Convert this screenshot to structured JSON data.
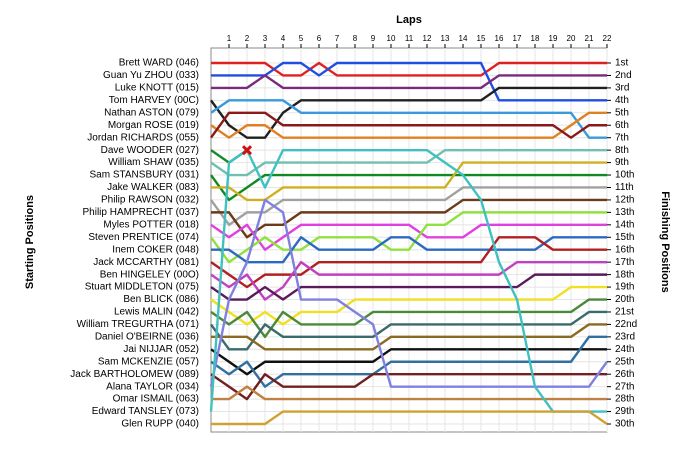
{
  "chart_data": {
    "type": "line",
    "title": "Laps",
    "y_label_left": "Starting Positions",
    "y_label_right": "Finishing Positions",
    "x": [
      0,
      1,
      2,
      3,
      4,
      5,
      6,
      7,
      8,
      9,
      10,
      11,
      12,
      13,
      14,
      15,
      16,
      17,
      18,
      19,
      20,
      21,
      22
    ],
    "xlim": [
      0,
      22
    ],
    "xticks": [
      1,
      2,
      3,
      4,
      5,
      6,
      7,
      8,
      9,
      10,
      11,
      12,
      13,
      14,
      15,
      16,
      17,
      18,
      19,
      20,
      21,
      22
    ],
    "ylim": [
      1,
      30
    ],
    "y_inverted": true,
    "grid": true,
    "yticks": [
      {
        "value": 1,
        "label": "1st"
      },
      {
        "value": 2,
        "label": "2nd"
      },
      {
        "value": 3,
        "label": "3rd"
      },
      {
        "value": 4,
        "label": "4th"
      },
      {
        "value": 5,
        "label": "5th"
      },
      {
        "value": 6,
        "label": "6th"
      },
      {
        "value": 7,
        "label": "7th"
      },
      {
        "value": 8,
        "label": "8th"
      },
      {
        "value": 9,
        "label": "9th"
      },
      {
        "value": 10,
        "label": "10th"
      },
      {
        "value": 11,
        "label": "11th"
      },
      {
        "value": 12,
        "label": "12th"
      },
      {
        "value": 13,
        "label": "13th"
      },
      {
        "value": 14,
        "label": "14th"
      },
      {
        "value": 15,
        "label": "15th"
      },
      {
        "value": 16,
        "label": "16th"
      },
      {
        "value": 17,
        "label": "17th"
      },
      {
        "value": 18,
        "label": "18th"
      },
      {
        "value": 19,
        "label": "19th"
      },
      {
        "value": 20,
        "label": "20th"
      },
      {
        "value": 21,
        "label": "21st"
      },
      {
        "value": 22,
        "label": "22nd"
      },
      {
        "value": 23,
        "label": "23rd"
      },
      {
        "value": 24,
        "label": "24th"
      },
      {
        "value": 25,
        "label": "25th"
      },
      {
        "value": 26,
        "label": "26th"
      },
      {
        "value": 27,
        "label": "27th"
      },
      {
        "value": 28,
        "label": "28th"
      },
      {
        "value": 29,
        "label": "29th"
      },
      {
        "value": 30,
        "label": "30th"
      }
    ],
    "crash_marks": [
      {
        "lap": 2,
        "position": 8
      }
    ],
    "series": [
      {
        "name": "Brett WARD (046)",
        "color": "#e02020",
        "values": [
          1,
          1,
          1,
          1,
          2,
          2,
          1,
          2,
          2,
          2,
          2,
          2,
          2,
          2,
          2,
          2,
          1,
          1,
          1,
          1,
          1,
          1,
          1
        ]
      },
      {
        "name": "Guan Yu ZHOU (033)",
        "color": "#1f4fe0",
        "values": [
          2,
          2,
          2,
          2,
          1,
          1,
          2,
          1,
          1,
          1,
          1,
          1,
          1,
          1,
          1,
          1,
          4,
          4,
          4,
          4,
          4,
          4,
          4
        ]
      },
      {
        "name": "Luke KNOTT (015)",
        "color": "#7a2a7a",
        "values": [
          3,
          3,
          3,
          2,
          3,
          3,
          3,
          3,
          3,
          3,
          3,
          3,
          3,
          3,
          3,
          3,
          2,
          2,
          2,
          2,
          2,
          2,
          2
        ]
      },
      {
        "name": "Tom HARVEY (00C)",
        "color": "#202020",
        "values": [
          4,
          6,
          7,
          7,
          5,
          4,
          4,
          4,
          4,
          4,
          4,
          4,
          4,
          4,
          4,
          4,
          3,
          3,
          3,
          3,
          3,
          3,
          3
        ]
      },
      {
        "name": "Nathan ASTON (079)",
        "color": "#3a9ad9",
        "values": [
          5,
          4,
          4,
          4,
          4,
          5,
          5,
          5,
          5,
          5,
          5,
          5,
          5,
          5,
          5,
          5,
          5,
          5,
          5,
          5,
          5,
          7,
          7
        ]
      },
      {
        "name": "Morgan ROSE (019)",
        "color": "#e08020",
        "values": [
          6,
          7,
          6,
          6,
          7,
          7,
          7,
          7,
          7,
          7,
          7,
          7,
          7,
          7,
          7,
          7,
          7,
          7,
          7,
          7,
          6,
          5,
          5
        ]
      },
      {
        "name": "Jordan RICHARDS (055)",
        "color": "#8a1a1a",
        "values": [
          7,
          5,
          5,
          5,
          6,
          6,
          6,
          6,
          6,
          6,
          6,
          6,
          6,
          6,
          6,
          6,
          6,
          6,
          6,
          6,
          7,
          6,
          6
        ]
      },
      {
        "name": "Dave WOODER (027)",
        "color": "#1a8a2a",
        "values": [
          8,
          9,
          8,
          null,
          null,
          null,
          null,
          null,
          null,
          null,
          null,
          null,
          null,
          null,
          null,
          null,
          null,
          null,
          null,
          null,
          null,
          null,
          null
        ]
      },
      {
        "name": "William SHAW (035)",
        "color": "#70c0b0",
        "values": [
          9,
          10,
          10,
          9,
          9,
          9,
          9,
          9,
          9,
          9,
          9,
          9,
          9,
          8,
          8,
          8,
          8,
          8,
          8,
          8,
          8,
          8,
          8
        ]
      },
      {
        "name": "Sam STANSBURY (031)",
        "color": "#108a20",
        "values": [
          10,
          12,
          11,
          10,
          10,
          10,
          10,
          10,
          10,
          10,
          10,
          10,
          10,
          10,
          10,
          10,
          10,
          10,
          10,
          10,
          10,
          10,
          10
        ]
      },
      {
        "name": "Jake WALKER (083)",
        "color": "#d0b020",
        "values": [
          11,
          11,
          12,
          12,
          11,
          11,
          11,
          11,
          11,
          11,
          11,
          11,
          11,
          11,
          9,
          9,
          9,
          9,
          9,
          9,
          9,
          9,
          9
        ]
      },
      {
        "name": "Philip RAWSON (032)",
        "color": "#a0a0a0",
        "values": [
          12,
          14,
          13,
          13,
          12,
          12,
          12,
          12,
          12,
          12,
          12,
          12,
          12,
          12,
          11,
          11,
          11,
          11,
          11,
          11,
          11,
          11,
          11
        ]
      },
      {
        "name": "Philip HAMPRECHT (037)",
        "color": "#6a3a1a",
        "values": [
          13,
          13,
          15,
          14,
          14,
          13,
          13,
          13,
          13,
          13,
          13,
          13,
          13,
          13,
          12,
          12,
          12,
          12,
          12,
          12,
          12,
          12,
          12
        ]
      },
      {
        "name": "Myles POTTER (018)",
        "color": "#e040e0",
        "values": [
          14,
          15,
          14,
          16,
          15,
          14,
          14,
          14,
          14,
          14,
          14,
          14,
          15,
          15,
          15,
          14,
          14,
          14,
          14,
          14,
          14,
          14,
          14
        ]
      },
      {
        "name": "Steven PRENTICE (074)",
        "color": "#90e040",
        "values": [
          15,
          17,
          16,
          15,
          16,
          16,
          15,
          15,
          15,
          15,
          16,
          16,
          14,
          14,
          13,
          13,
          13,
          13,
          13,
          13,
          13,
          13,
          13
        ]
      },
      {
        "name": "Inem COKER (048)",
        "color": "#2a6ac0",
        "values": [
          16,
          16,
          17,
          17,
          17,
          15,
          16,
          16,
          16,
          16,
          15,
          15,
          16,
          16,
          16,
          16,
          16,
          16,
          16,
          15,
          15,
          15,
          15
        ]
      },
      {
        "name": "Jack MCCARTHY (081)",
        "color": "#b02020",
        "values": [
          17,
          18,
          19,
          18,
          18,
          18,
          17,
          17,
          17,
          17,
          17,
          17,
          17,
          17,
          17,
          17,
          15,
          15,
          15,
          16,
          16,
          16,
          16
        ]
      },
      {
        "name": "Ben HINGELEY (00O)",
        "color": "#c040c0",
        "values": [
          18,
          19,
          18,
          20,
          19,
          17,
          18,
          18,
          18,
          18,
          18,
          18,
          18,
          18,
          18,
          18,
          18,
          17,
          17,
          17,
          17,
          17,
          17
        ]
      },
      {
        "name": "Stuart MIDDLETON (075)",
        "color": "#5a1a5a",
        "values": [
          19,
          20,
          20,
          19,
          20,
          19,
          19,
          19,
          19,
          19,
          19,
          19,
          19,
          19,
          19,
          19,
          19,
          19,
          18,
          18,
          18,
          18,
          18
        ]
      },
      {
        "name": "Ben BLICK (086)",
        "color": "#f0e020",
        "values": [
          20,
          21,
          22,
          21,
          22,
          21,
          21,
          21,
          20,
          20,
          20,
          20,
          20,
          20,
          20,
          20,
          20,
          20,
          20,
          20,
          19,
          19,
          19
        ]
      },
      {
        "name": "Lewis MALIN (042)",
        "color": "#4a8a3a",
        "values": [
          21,
          22,
          21,
          23,
          21,
          22,
          22,
          22,
          22,
          21,
          21,
          21,
          21,
          21,
          21,
          21,
          21,
          21,
          21,
          21,
          21,
          20,
          20
        ]
      },
      {
        "name": "William TREGURTHA (071)",
        "color": "#3a6a6a",
        "values": [
          22,
          24,
          24,
          22,
          23,
          23,
          23,
          23,
          23,
          23,
          22,
          22,
          22,
          22,
          22,
          22,
          22,
          22,
          22,
          22,
          22,
          21,
          21
        ]
      },
      {
        "name": "Daniel O'BEIRNE (036)",
        "color": "#8a6a20",
        "values": [
          23,
          23,
          23,
          24,
          24,
          24,
          24,
          24,
          24,
          24,
          23,
          23,
          23,
          23,
          23,
          23,
          23,
          23,
          23,
          23,
          23,
          22,
          22
        ]
      },
      {
        "name": "Jai NIJJAR (052)",
        "color": "#101010",
        "values": [
          24,
          25,
          26,
          25,
          25,
          25,
          25,
          25,
          25,
          25,
          24,
          24,
          24,
          24,
          24,
          24,
          24,
          24,
          24,
          24,
          24,
          24,
          24
        ]
      },
      {
        "name": "Sam MCKENZIE (057)",
        "color": "#3070a0",
        "values": [
          25,
          26,
          25,
          27,
          26,
          26,
          26,
          26,
          26,
          26,
          25,
          25,
          25,
          25,
          25,
          25,
          25,
          25,
          25,
          25,
          25,
          23,
          23
        ]
      },
      {
        "name": "Jack BARTHOLOMEW (089)",
        "color": "#702020",
        "values": [
          26,
          27,
          28,
          26,
          27,
          27,
          27,
          27,
          27,
          26,
          26,
          26,
          26,
          26,
          26,
          26,
          26,
          26,
          26,
          26,
          26,
          26,
          26
        ]
      },
      {
        "name": "Alana TAYLOR (034)",
        "color": "#8080e0",
        "values": [
          27,
          20,
          17,
          12,
          13,
          20,
          20,
          20,
          21,
          22,
          27,
          27,
          27,
          27,
          27,
          27,
          27,
          27,
          27,
          27,
          27,
          27,
          25
        ]
      },
      {
        "name": "Omar ISMAIL (063)",
        "color": "#c08040",
        "values": [
          28,
          28,
          27,
          28,
          28,
          28,
          28,
          28,
          28,
          28,
          28,
          28,
          28,
          28,
          28,
          28,
          28,
          28,
          28,
          28,
          28,
          28,
          28
        ]
      },
      {
        "name": "Edward TANSLEY (073)",
        "color": "#40c0c0",
        "values": [
          29,
          9,
          8,
          11,
          8,
          8,
          8,
          8,
          8,
          8,
          8,
          8,
          8,
          9,
          10,
          12,
          17,
          20,
          27,
          29,
          29,
          29,
          29
        ]
      },
      {
        "name": "Glen RUPP (040)",
        "color": "#d0a030",
        "values": [
          30,
          30,
          30,
          30,
          29,
          29,
          29,
          29,
          29,
          29,
          29,
          29,
          29,
          29,
          29,
          29,
          29,
          29,
          29,
          29,
          29,
          29,
          30
        ]
      }
    ]
  }
}
